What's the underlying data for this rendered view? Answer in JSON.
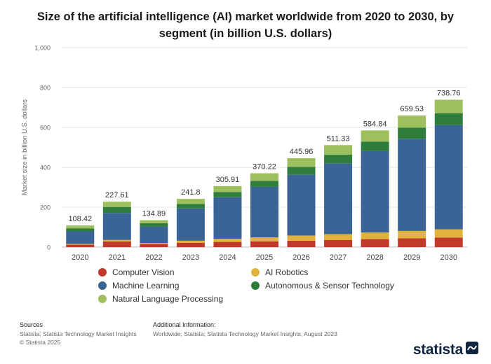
{
  "title": "Size of the artificial intelligence (AI) market worldwide from 2020 to 2030, by segment (in billion U.S. dollars)",
  "chart_data": {
    "type": "bar",
    "stacked": true,
    "title": "Size of the artificial intelligence (AI) market worldwide from 2020 to 2030, by segment (in billion U.S. dollars)",
    "xlabel": "",
    "ylabel": "Market size in billion U.S. dollars",
    "ylim": [
      0,
      1000
    ],
    "yticks": [
      0,
      200,
      400,
      600,
      800,
      1000
    ],
    "ytick_labels": [
      "0",
      "200",
      "400",
      "600",
      "800",
      "1,000"
    ],
    "grid": true,
    "legend_position": "bottom",
    "categories": [
      "2020",
      "2021",
      "2022",
      "2023",
      "2024",
      "2025",
      "2026",
      "2027",
      "2028",
      "2029",
      "2030"
    ],
    "totals": [
      "108.42",
      "227.61",
      "134.89",
      "241.8",
      "305.91",
      "370.22",
      "445.96",
      "511.33",
      "584.84",
      "659.53",
      "738.76"
    ],
    "series": [
      {
        "name": "Computer Vision",
        "color": "#c0392b",
        "values": [
          12,
          28,
          16,
          22,
          26,
          29,
          32,
          36,
          40,
          44,
          48
        ]
      },
      {
        "name": "AI Robotics",
        "color": "#e0b43c",
        "values": [
          4,
          8,
          5,
          10,
          16,
          20,
          26,
          29,
          33,
          37,
          41
        ]
      },
      {
        "name": "Machine Learning",
        "color": "#3a6496",
        "values": [
          63,
          135,
          81,
          162,
          208,
          253,
          306,
          355,
          408,
          462,
          522
        ]
      },
      {
        "name": "Autonomous & Sensor Technology",
        "color": "#2e7d3c",
        "values": [
          15,
          30,
          18,
          22,
          26,
          30,
          38,
          43,
          48,
          56,
          60
        ]
      },
      {
        "name": "Natural Language Processing",
        "color": "#9ebf5e",
        "values": [
          14.42,
          26.61,
          14.89,
          25.8,
          29.91,
          38.22,
          43.96,
          48.33,
          55.84,
          60.53,
          67.76
        ]
      }
    ]
  },
  "legend": {
    "items": [
      {
        "name": "Computer Vision",
        "color": "#c0392b"
      },
      {
        "name": "AI Robotics",
        "color": "#e0b43c"
      },
      {
        "name": "Machine Learning",
        "color": "#3a6496"
      },
      {
        "name": "Autonomous & Sensor Technology",
        "color": "#2e7d3c"
      },
      {
        "name": "Natural Language Processing",
        "color": "#9ebf5e"
      }
    ]
  },
  "footer": {
    "sources_label": "Sources",
    "sources_line1": "Statista; Statista Technology Market Insights",
    "sources_line2": "© Statista 2025",
    "additional_label": "Additional Information:",
    "additional_text": "Worldwide; Statista; Statista Technology Market Insights; August 2023"
  },
  "brand": {
    "name": "statista",
    "icon": "statista-wave-icon"
  }
}
